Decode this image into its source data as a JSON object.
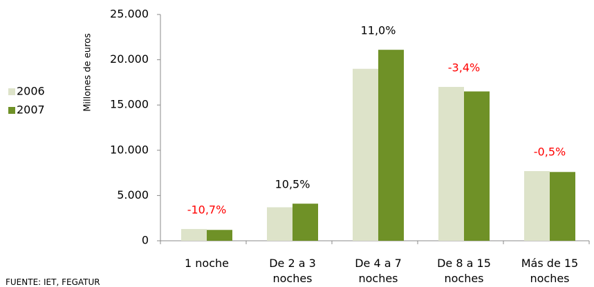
{
  "chart_data": {
    "type": "bar",
    "y_label": "Millones de euros",
    "source": "FUENTE: IET, FEGATUR",
    "categories": [
      "1 noche",
      "De 2 a 3 noches",
      "De 4 a 7 noches",
      "De 8 a 15 noches",
      "Más de 15 noches"
    ],
    "series": [
      {
        "name": "2006",
        "color": "#dde3c9",
        "values": [
          1300,
          3700,
          19000,
          17000,
          7700
        ]
      },
      {
        "name": "2007",
        "color": "#6f9127",
        "values": [
          1200,
          4100,
          21100,
          16500,
          7600
        ]
      }
    ],
    "annotations": [
      {
        "text": "-10,7%",
        "color": "#ff0000"
      },
      {
        "text": "10,5%",
        "color": "#000000"
      },
      {
        "text": "11,0%",
        "color": "#000000"
      },
      {
        "text": "-3,4%",
        "color": "#ff0000"
      },
      {
        "text": "-0,5%",
        "color": "#ff0000"
      }
    ],
    "ylim": [
      0,
      25000
    ],
    "yticks": [
      0,
      {
        "value": 5000,
        "label": "5.000"
      },
      {
        "value": 10000,
        "label": "10.000"
      },
      {
        "value": 15000,
        "label": "15.000"
      },
      {
        "value": 20000,
        "label": "20.000"
      },
      {
        "value": 25000,
        "label": "25.000"
      }
    ],
    "grid": false,
    "legend": "left"
  }
}
